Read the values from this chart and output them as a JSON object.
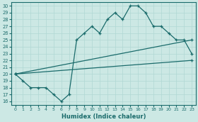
{
  "xlabel": "Humidex (Indice chaleur)",
  "bg_color": "#cce8e4",
  "line_color": "#1a6b6b",
  "grid_color": "#b0d8d4",
  "xlim": [
    -0.5,
    23.5
  ],
  "ylim": [
    15.5,
    30.5
  ],
  "yticks": [
    16,
    17,
    18,
    19,
    20,
    21,
    22,
    23,
    24,
    25,
    26,
    27,
    28,
    29,
    30
  ],
  "xticks": [
    0,
    1,
    2,
    3,
    4,
    5,
    6,
    7,
    8,
    9,
    10,
    11,
    12,
    13,
    14,
    15,
    16,
    17,
    18,
    19,
    20,
    21,
    22,
    23
  ],
  "line1_x": [
    0,
    1,
    2,
    3,
    4,
    5,
    6,
    7,
    8,
    9,
    10,
    11,
    12,
    13,
    14,
    15,
    16,
    17,
    18,
    19,
    20,
    21,
    22,
    23
  ],
  "line1_y": [
    20,
    19,
    18,
    18,
    18,
    17,
    16,
    17,
    25,
    26,
    27,
    26,
    28,
    29,
    28,
    30,
    30,
    29,
    27,
    27,
    26,
    25,
    25,
    23
  ],
  "line2_x": [
    0,
    23
  ],
  "line2_y": [
    20,
    22
  ],
  "line3_x": [
    0,
    23
  ],
  "line3_y": [
    20,
    25
  ]
}
